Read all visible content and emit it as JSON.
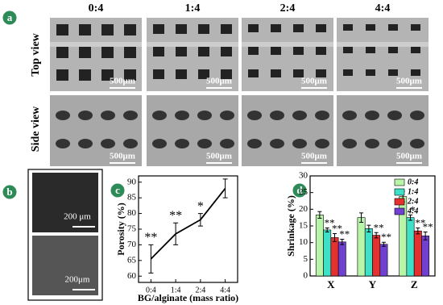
{
  "panel_labels": [
    "a",
    "b",
    "c",
    "d"
  ],
  "micrographs": {
    "columns": [
      "0:4",
      "1:4",
      "2:4",
      "4:4"
    ],
    "rows": [
      "Top view",
      "Side view"
    ],
    "scale_label": "500μm"
  },
  "sem_insets": {
    "scale_labels": [
      "200 μm",
      "200μm"
    ]
  },
  "chart_data": [
    {
      "type": "line",
      "ylabel": "Porosity (%)",
      "xlabel": "BG/alginate (mass ratio)",
      "categories": [
        "0:4",
        "1:4",
        "2:4",
        "4:4"
      ],
      "values": [
        65.5,
        73.5,
        78,
        88
      ],
      "errors": [
        4.5,
        3.5,
        2,
        3
      ],
      "significance": [
        "**",
        "**",
        "*",
        null
      ],
      "color": "#000000",
      "ylim": [
        58,
        92
      ],
      "yticks": [
        60,
        65,
        70,
        75,
        80,
        85,
        90
      ]
    },
    {
      "type": "bar",
      "ylabel": "Shrinkage (%)",
      "categories": [
        "X",
        "Y",
        "Z"
      ],
      "series": [
        {
          "name": "0:4",
          "color": "#b8f5a8",
          "values": [
            18.3,
            17.5,
            23.8
          ],
          "errors": [
            1,
            1.4,
            1.6
          ],
          "significance": [
            null,
            null,
            null
          ]
        },
        {
          "name": "1:4",
          "color": "#3fe0c8",
          "values": [
            13.8,
            14.2,
            17.5
          ],
          "errors": [
            0.6,
            1,
            0.8
          ],
          "significance": [
            "**",
            null,
            "*"
          ]
        },
        {
          "name": "2:4",
          "color": "#e53030",
          "values": [
            11.5,
            12.2,
            13.5
          ],
          "errors": [
            1.2,
            0.8,
            0.9
          ],
          "significance": [
            "**",
            "**",
            "**"
          ]
        },
        {
          "name": "4:4",
          "color": "#7040d0",
          "values": [
            10.2,
            9.5,
            12
          ],
          "errors": [
            0.8,
            0.6,
            1.2
          ],
          "significance": [
            "**",
            "**",
            "**"
          ]
        }
      ],
      "ylim": [
        0,
        30
      ],
      "yticks": [
        0,
        5,
        10,
        15,
        20,
        25,
        30
      ],
      "legend": "upper right"
    }
  ]
}
